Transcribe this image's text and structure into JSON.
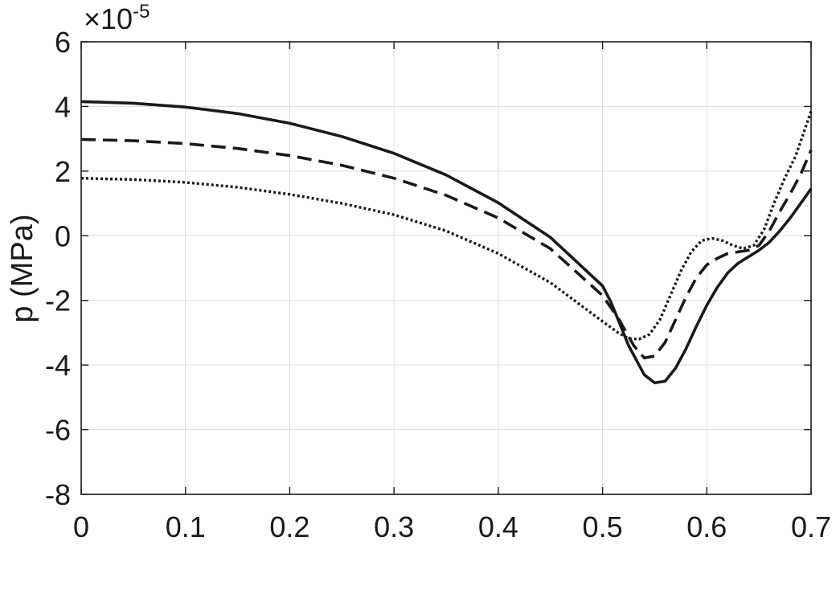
{
  "chart_data": {
    "type": "line",
    "title": "",
    "xlabel": "",
    "ylabel": "p (MPa)",
    "y_exponent_label": "×10",
    "y_exponent_power": "-5",
    "xlim": [
      0,
      0.7
    ],
    "ylim": [
      -8,
      6
    ],
    "xticks": [
      0,
      0.1,
      0.2,
      0.3,
      0.4,
      0.5,
      0.6,
      0.7
    ],
    "xtick_labels": [
      "0",
      "0.1",
      "0.2",
      "0.3",
      "0.4",
      "0.5",
      "0.6",
      "0.7"
    ],
    "yticks": [
      -8,
      -6,
      -4,
      -2,
      0,
      2,
      4,
      6
    ],
    "ytick_labels": [
      "-8",
      "-6",
      "-4",
      "-2",
      "0",
      "2",
      "4",
      "6"
    ],
    "grid": true,
    "line_color": "#1a1a1a",
    "grid_color": "#dcdcdc",
    "series": [
      {
        "style": "solid",
        "x": [
          0,
          0.05,
          0.1,
          0.15,
          0.2,
          0.25,
          0.3,
          0.35,
          0.4,
          0.45,
          0.5,
          0.508,
          0.515,
          0.525,
          0.54,
          0.55,
          0.56,
          0.57,
          0.58,
          0.59,
          0.6,
          0.61,
          0.62,
          0.63,
          0.64,
          0.65,
          0.66,
          0.67,
          0.68,
          0.69,
          0.7
        ],
        "y": [
          4.15,
          4.1,
          3.98,
          3.78,
          3.48,
          3.07,
          2.55,
          1.88,
          1.02,
          -0.05,
          -1.55,
          -2.05,
          -2.6,
          -3.4,
          -4.3,
          -4.55,
          -4.5,
          -4.1,
          -3.5,
          -2.8,
          -2.15,
          -1.6,
          -1.15,
          -0.85,
          -0.65,
          -0.45,
          -0.2,
          0.15,
          0.55,
          1.0,
          1.45
        ]
      },
      {
        "style": "dashed",
        "x": [
          0,
          0.05,
          0.1,
          0.15,
          0.2,
          0.25,
          0.3,
          0.35,
          0.4,
          0.45,
          0.5,
          0.515,
          0.53,
          0.54,
          0.55,
          0.56,
          0.57,
          0.58,
          0.59,
          0.6,
          0.61,
          0.62,
          0.63,
          0.64,
          0.65,
          0.66,
          0.67,
          0.68,
          0.69,
          0.7
        ],
        "y": [
          2.98,
          2.94,
          2.85,
          2.7,
          2.48,
          2.18,
          1.78,
          1.25,
          0.55,
          -0.4,
          -1.85,
          -2.55,
          -3.4,
          -3.78,
          -3.72,
          -3.3,
          -2.6,
          -1.9,
          -1.3,
          -0.9,
          -0.7,
          -0.55,
          -0.5,
          -0.45,
          -0.3,
          0.15,
          0.75,
          1.3,
          1.9,
          2.65
        ]
      },
      {
        "style": "dotted",
        "x": [
          0,
          0.05,
          0.1,
          0.15,
          0.2,
          0.25,
          0.3,
          0.35,
          0.4,
          0.45,
          0.5,
          0.515,
          0.525,
          0.535,
          0.545,
          0.555,
          0.565,
          0.575,
          0.585,
          0.595,
          0.605,
          0.615,
          0.625,
          0.635,
          0.645,
          0.655,
          0.665,
          0.675,
          0.685,
          0.7
        ],
        "y": [
          1.78,
          1.74,
          1.65,
          1.5,
          1.28,
          1.0,
          0.65,
          0.15,
          -0.55,
          -1.45,
          -2.65,
          -3.0,
          -3.18,
          -3.2,
          -3.05,
          -2.6,
          -1.85,
          -1.1,
          -0.5,
          -0.15,
          -0.08,
          -0.15,
          -0.3,
          -0.4,
          -0.3,
          0.2,
          1.05,
          1.8,
          2.45,
          3.85
        ]
      }
    ]
  }
}
